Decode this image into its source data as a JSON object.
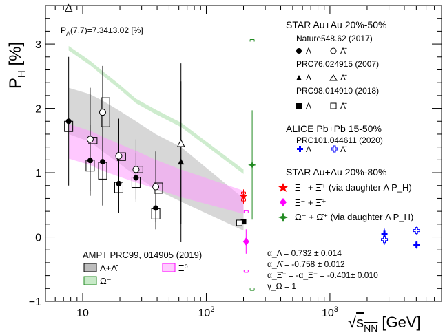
{
  "chart_data": {
    "type": "scatter",
    "x_scale": "log",
    "xlim": [
      5,
      8000
    ],
    "ylim": [
      -1,
      3.6
    ],
    "xlabel": "√s_NN [GeV]",
    "ylabel": "P_H [%]",
    "x_ticks": [
      {
        "v": 10,
        "label": "10"
      },
      {
        "v": 100,
        "label": "10²"
      },
      {
        "v": 1000,
        "label": "10³"
      }
    ],
    "y_ticks": [
      {
        "v": -1,
        "label": "−1"
      },
      {
        "v": 0,
        "label": "0"
      },
      {
        "v": 1,
        "label": "1"
      },
      {
        "v": 2,
        "label": "2"
      },
      {
        "v": 3,
        "label": "3"
      }
    ],
    "zero_line": true,
    "annotation_topleft": "P_Λ̄(7.7)=7.34±3.02 [%]",
    "bands": [
      {
        "name": "Λ+Λ̄",
        "color": "#bdbdbd",
        "x": [
          7.7,
          11.5,
          14.5,
          19.6,
          27,
          39,
          62.4,
          200
        ],
        "upper": [
          2.32,
          2.22,
          2.12,
          1.97,
          1.8,
          1.6,
          1.4,
          0.6
        ],
        "lower": [
          1.6,
          1.48,
          1.33,
          1.15,
          0.95,
          0.74,
          0.55,
          0.1
        ]
      },
      {
        "name": "Ξ⁰",
        "color": "#ff9bff",
        "x": [
          7.7,
          11.5,
          14.5,
          19.6,
          27,
          39,
          62.4,
          200
        ],
        "upper": [
          1.76,
          1.65,
          1.56,
          1.45,
          1.34,
          1.2,
          1.05,
          0.72
        ],
        "lower": [
          1.22,
          1.12,
          1.03,
          0.94,
          0.85,
          0.75,
          0.62,
          0.36
        ]
      },
      {
        "name": "Ω⁻",
        "color": "#a6dca6",
        "x": [
          7.7,
          11.5,
          14.5,
          19.6,
          27,
          39,
          62.4,
          200
        ],
        "upper": [
          2.97,
          2.74,
          2.58,
          2.38,
          2.15,
          1.98,
          1.78,
          1.05
        ],
        "lower": [
          2.9,
          2.67,
          2.51,
          2.31,
          2.08,
          1.91,
          1.71,
          0.98
        ]
      }
    ],
    "series": [
      {
        "name": "Λ",
        "marker": "circle-filled",
        "color": "#000",
        "points": [
          {
            "x": 7.7,
            "y": 1.8,
            "err": 1.0
          },
          {
            "x": 11.5,
            "y": 1.19,
            "err": 0.55
          },
          {
            "x": 14.5,
            "y": 1.17,
            "err": 0.68
          },
          {
            "x": 19.6,
            "y": 0.83,
            "err": 0.45
          },
          {
            "x": 27,
            "y": 0.92,
            "err": 0.38
          },
          {
            "x": 39,
            "y": 0.45,
            "err": 0.33
          }
        ]
      },
      {
        "name": "Λ̄",
        "marker": "circle-open",
        "color": "#000",
        "points": [
          {
            "x": 11.5,
            "y": 1.52,
            "err": 0.8
          },
          {
            "x": 14.5,
            "y": 1.94,
            "err": 0.72
          },
          {
            "x": 19.6,
            "y": 1.26,
            "err": 0.58
          },
          {
            "x": 27,
            "y": 1.05,
            "err": 0.47
          },
          {
            "x": 39,
            "y": 0.78,
            "err": 0.55
          }
        ]
      },
      {
        "name": "Λ",
        "marker": "triangle-filled",
        "color": "#000",
        "points": [
          {
            "x": 62.4,
            "y": 1.17,
            "err": 1.25
          }
        ]
      },
      {
        "name": "Λ̄",
        "marker": "triangle-open",
        "color": "#000",
        "points": [
          {
            "x": 62.4,
            "y": 1.45,
            "err": 1.25
          },
          {
            "x": 7.7,
            "y": 3.55,
            "err": 0
          }
        ]
      },
      {
        "name": "Λ",
        "marker": "square-filled",
        "color": "#000",
        "points": [
          {
            "x": 200,
            "y": 0.24,
            "err": 0.04
          }
        ]
      },
      {
        "name": "Λ̄",
        "marker": "square-open",
        "color": "#000",
        "points": [
          {
            "x": 185,
            "y": 0.22,
            "err": 0.04
          }
        ]
      },
      {
        "name": "Λ",
        "marker": "cross-filled",
        "color": "#0000ff",
        "points": [
          {
            "x": 2760,
            "y": 0.05,
            "err": 0.08
          },
          {
            "x": 5020,
            "y": -0.12,
            "err": 0.06
          }
        ]
      },
      {
        "name": "Λ̄",
        "marker": "cross-open",
        "color": "#0000ff",
        "points": [
          {
            "x": 2760,
            "y": -0.04,
            "err": 0.08
          },
          {
            "x": 5020,
            "y": 0.1,
            "err": 0.06
          }
        ]
      },
      {
        "name": "Ξ⁻ + Ξ̄⁺ (via daughter Λ P_H)",
        "marker": "star",
        "color": "#ff0000",
        "points": [
          {
            "x": 200,
            "y": 0.63,
            "err": 0.11
          }
        ]
      },
      {
        "name": "Ξ⁻ + Ξ̄⁺",
        "marker": "diamond",
        "color": "#ff00ff",
        "points": [
          {
            "x": 210,
            "y": -0.07,
            "err": 0.19
          }
        ]
      },
      {
        "name": "Ω⁻ + Ω̄⁺ (via daughter Λ P_H)",
        "marker": "star4",
        "color": "#228b22",
        "points": [
          {
            "x": 235,
            "y": 1.12,
            "err": 0.85
          }
        ]
      }
    ],
    "sys_brackets": [
      {
        "x": 200,
        "y": 0.63,
        "half": 0.07,
        "color": "#ff0000"
      },
      {
        "x": 210,
        "y": -0.07,
        "half": 0.48,
        "color": "#ff00ff"
      },
      {
        "x": 235,
        "y": 1.12,
        "half": 1.95,
        "color": "#228b22"
      }
    ],
    "sys_boxes": [
      {
        "x": 7.7,
        "y": 1.72,
        "h": 0.16
      },
      {
        "x": 11.5,
        "y": 1.11,
        "h": 0.17
      },
      {
        "x": 12.1,
        "y": 1.5,
        "h": 0.1
      },
      {
        "x": 14.5,
        "y": 1.03,
        "h": 0.26
      },
      {
        "x": 15.3,
        "y": 1.94,
        "h": 0.45
      },
      {
        "x": 19.6,
        "y": 0.77,
        "h": 0.16
      },
      {
        "x": 20.6,
        "y": 1.25,
        "h": 0.12
      },
      {
        "x": 27,
        "y": 0.85,
        "h": 0.16
      },
      {
        "x": 28.4,
        "y": 1.05,
        "h": 0.1
      },
      {
        "x": 39,
        "y": 0.36,
        "h": 0.16
      },
      {
        "x": 41,
        "y": 0.76,
        "h": 0.16
      }
    ]
  },
  "legend": {
    "star": {
      "header": "STAR Au+Au 20%-50%",
      "ref1": "Nature548.62 (2017)",
      "ref1_a": "Λ",
      "ref1_b": "Λ̄",
      "ref2": "PRC76.024915 (2007)",
      "ref2_a": "Λ",
      "ref2_b": "Λ̄",
      "ref3": "PRC98.014910 (2018)",
      "ref3_a": "Λ",
      "ref3_b": "Λ̄"
    },
    "alice": {
      "header": "ALICE Pb+Pb 15-50%",
      "ref": "PRC101.044611 (2020)",
      "a": "Λ",
      "b": "Λ̄"
    },
    "star80": {
      "header": "STAR Au+Au 20%-80%",
      "xi_red": "Ξ⁻ + Ξ̄⁺ (via daughter Λ P_H)",
      "xi_mag": "Ξ⁻ + Ξ̄⁺",
      "omega": "Ω⁻ + Ω̄⁺ (via daughter Λ P_H)"
    },
    "ampt": {
      "header": "AMPT PRC99, 014905 (2019)",
      "lambda": "Λ+Λ̄",
      "xi0": "Ξ⁰",
      "omega": "Ω⁻"
    },
    "alphas": [
      "α_Λ = 0.732 ± 0.014",
      "α_Λ̄ = -0.758 ± 0.012",
      "α_Ξ̄⁺ = -α_Ξ⁻ = -0.401± 0.010",
      "γ_Ω = 1"
    ]
  }
}
